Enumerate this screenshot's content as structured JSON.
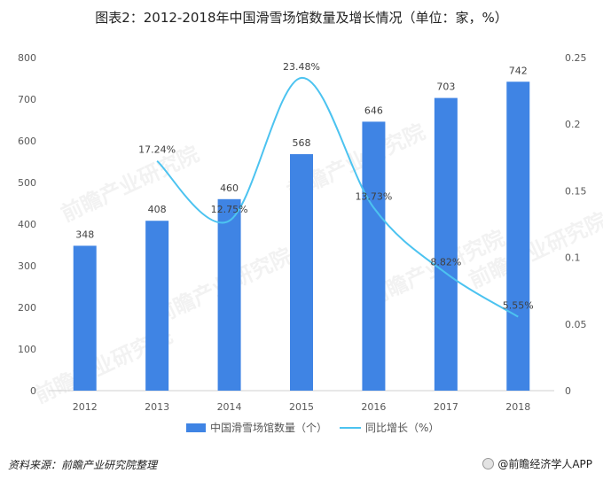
{
  "title": "图表2：2012-2018年中国滑雪场馆数量及增长情况（单位：家，%）",
  "chart_data": {
    "type": "bar",
    "categories": [
      "2012",
      "2013",
      "2014",
      "2015",
      "2016",
      "2017",
      "2018"
    ],
    "series": [
      {
        "name": "中国滑雪场馆数量（个）",
        "type": "bar",
        "axis": "left",
        "color": "#3f84e4",
        "values": [
          348,
          408,
          460,
          568,
          646,
          703,
          742
        ],
        "labels": [
          "348",
          "408",
          "460",
          "568",
          "646",
          "703",
          "742"
        ]
      },
      {
        "name": "同比增长（%）",
        "type": "line",
        "axis": "right",
        "smooth": true,
        "color": "#4cc3f0",
        "values": [
          null,
          0.1724,
          0.1275,
          0.2348,
          0.1373,
          0.0882,
          0.0555
        ],
        "labels": [
          null,
          "17.24%",
          "12.75%",
          "23.48%",
          "13.73%",
          "8.82%",
          "5.55%"
        ]
      }
    ],
    "y_left": {
      "min": 0,
      "max": 800,
      "ticks": [
        "0",
        "100",
        "200",
        "300",
        "400",
        "500",
        "600",
        "700",
        "800"
      ]
    },
    "y_right": {
      "min": 0,
      "max": 0.25,
      "ticks": [
        "0",
        "0.05",
        "0.1",
        "0.15",
        "0.2",
        "0.25"
      ]
    },
    "legend_position": "bottom",
    "grid": false
  },
  "footer": {
    "source": "资料来源：前瞻产业研究院整理",
    "brand": "@前瞻经济学人APP"
  },
  "watermark": "前瞻产业研究院"
}
